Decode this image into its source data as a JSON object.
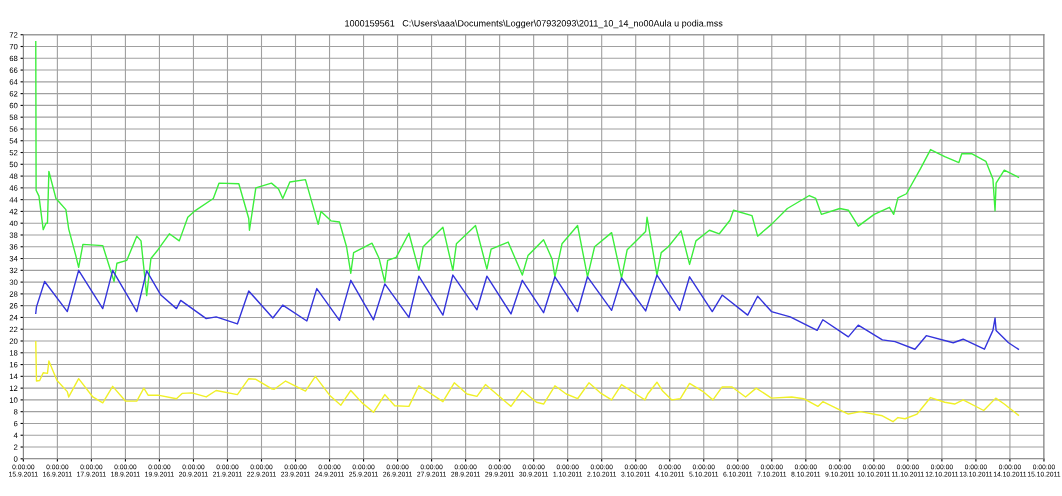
{
  "chart_data": {
    "type": "line",
    "title": "1000159561   C:\\Users\\aaa\\Documents\\Logger\\07932093\\2011_10_14_no00Aula u podia.mss",
    "xlim": [
      "2011-09-15",
      "2011-10-15"
    ],
    "xticks": [
      {
        "value": "2011-09-15",
        "label": "0:00:00\n15.9.2011"
      },
      {
        "value": "2011-09-16",
        "label": "0:00:00\n16.9.2011"
      },
      {
        "value": "2011-09-17",
        "label": "0:00:00\n17.9.2011"
      },
      {
        "value": "2011-09-18",
        "label": "0:00:00\n18.9.2011"
      },
      {
        "value": "2011-09-19",
        "label": "0:00:00\n19.9.2011"
      },
      {
        "value": "2011-09-20",
        "label": "0:00:00\n20.9.2011"
      },
      {
        "value": "2011-09-21",
        "label": "0:00:00\n21.9.2011"
      },
      {
        "value": "2011-09-22",
        "label": "0:00:00\n22.9.2011"
      },
      {
        "value": "2011-09-23",
        "label": "0:00:00\n23.9.2011"
      },
      {
        "value": "2011-09-24",
        "label": "0:00:00\n24.9.2011"
      },
      {
        "value": "2011-09-25",
        "label": "0:00:00\n25.9.2011"
      },
      {
        "value": "2011-09-26",
        "label": "0:00:00\n26.9.2011"
      },
      {
        "value": "2011-09-27",
        "label": "0:00:00\n27.9.2011"
      },
      {
        "value": "2011-09-28",
        "label": "0:00:00\n28.9.2011"
      },
      {
        "value": "2011-09-29",
        "label": "0:00:00\n29.9.2011"
      },
      {
        "value": "2011-09-30",
        "label": "0:00:00\n30.9.2011"
      },
      {
        "value": "2011-10-01",
        "label": "0:00:00\n1.10.2011"
      },
      {
        "value": "2011-10-02",
        "label": "0:00:00\n2.10.2011"
      },
      {
        "value": "2011-10-03",
        "label": "0:00:00\n3.10.2011"
      },
      {
        "value": "2011-10-04",
        "label": "0:00:00\n4.10.2011"
      },
      {
        "value": "2011-10-05",
        "label": "0:00:00\n5.10.2011"
      },
      {
        "value": "2011-10-06",
        "label": "0:00:00\n6.10.2011"
      },
      {
        "value": "2011-10-07",
        "label": "0:00:00\n7.10.2011"
      },
      {
        "value": "2011-10-08",
        "label": "0:00:00\n8.10.2011"
      },
      {
        "value": "2011-10-09",
        "label": "0:00:00\n9.10.2011"
      },
      {
        "value": "2011-10-10",
        "label": "0:00:00\n10.10.2011"
      },
      {
        "value": "2011-10-11",
        "label": "0:00:00\n11.10.2011"
      },
      {
        "value": "2011-10-12",
        "label": "0:00:00\n12.10.2011"
      },
      {
        "value": "2011-10-13",
        "label": "0:00:00\n13.10.2011"
      },
      {
        "value": "2011-10-14",
        "label": "0:00:00\n14.10.2011"
      },
      {
        "value": "2011-10-15",
        "label": "0:00:00\n15.10.2011"
      }
    ],
    "ylim": [
      0,
      72
    ],
    "yticks": [
      0,
      2,
      4,
      6,
      8,
      10,
      12,
      14,
      16,
      18,
      20,
      22,
      24,
      26,
      28,
      30,
      32,
      34,
      36,
      38,
      40,
      42,
      44,
      46,
      48,
      50,
      52,
      54,
      56,
      58,
      60,
      62,
      64,
      66,
      68,
      70,
      72
    ],
    "grid": true,
    "series": [
      {
        "color": "#3cee3c",
        "x": [
          "2011-09-15T08:45",
          "2011-09-15T09:00",
          "2011-09-15T11:00",
          "2011-09-15T14:00",
          "2011-09-15T16:00",
          "2011-09-15T17:00",
          "2011-09-15T18:00",
          "2011-09-15T23:00",
          "2011-09-16T06:00",
          "2011-09-16T08:00",
          "2011-09-16T13:00",
          "2011-09-16T15:00",
          "2011-09-16T18:00",
          "2011-09-17T08:00",
          "2011-09-17T16:00",
          "2011-09-17T18:00",
          "2011-09-18T01:00",
          "2011-09-18T08:00",
          "2011-09-18T11:00",
          "2011-09-18T15:00",
          "2011-09-18T18:00",
          "2011-09-18T23:00",
          "2011-09-19T07:00",
          "2011-09-19T14:00",
          "2011-09-19T20:00",
          "2011-09-20T00:30",
          "2011-09-20T14:00",
          "2011-09-20T18:00",
          "2011-09-21T08:00",
          "2011-09-21T15:00",
          "2011-09-21T15:30",
          "2011-09-21T20:00",
          "2011-09-22T07:00",
          "2011-09-22T12:00",
          "2011-09-22T15:00",
          "2011-09-22T20:00",
          "2011-09-23T07:00",
          "2011-09-23T16:00",
          "2011-09-23T18:00",
          "2011-09-24T01:00",
          "2011-09-24T07:00",
          "2011-09-24T12:00",
          "2011-09-24T15:00",
          "2011-09-24T17:00",
          "2011-09-25T06:00",
          "2011-09-25T11:00",
          "2011-09-25T15:00",
          "2011-09-25T17:00",
          "2011-09-25T23:00",
          "2011-09-26T08:00",
          "2011-09-26T15:00",
          "2011-09-26T18:00",
          "2011-09-27T08:00",
          "2011-09-27T15:00",
          "2011-09-27T17:30",
          "2011-09-28T07:00",
          "2011-09-28T15:00",
          "2011-09-28T18:00",
          "2011-09-29T06:00",
          "2011-09-29T16:00",
          "2011-09-29T20:00",
          "2011-09-30T07:00",
          "2011-09-30T13:00",
          "2011-09-30T15:00",
          "2011-09-30T20:00",
          "2011-10-01T07:00",
          "2011-10-01T14:00",
          "2011-10-01T19:00",
          "2011-10-02T07:00",
          "2011-10-02T14:00",
          "2011-10-02T18:00",
          "2011-10-03T07:00",
          "2011-10-03T08:00",
          "2011-10-03T15:00",
          "2011-10-03T18:00",
          "2011-10-03T23:00",
          "2011-10-04T08:00",
          "2011-10-04T14:00",
          "2011-10-04T18:30",
          "2011-10-05T04:00",
          "2011-10-05T11:00",
          "2011-10-05T18:30",
          "2011-10-05T21:00",
          "2011-10-06T10:00",
          "2011-10-06T14:00",
          "2011-10-06T23:45",
          "2011-10-07T11:00",
          "2011-10-08T02:30",
          "2011-10-08T07:00",
          "2011-10-08T11:00",
          "2011-10-09T00:00",
          "2011-10-09T06:00",
          "2011-10-09T13:00",
          "2011-10-10T00:15",
          "2011-10-10T11:00",
          "2011-10-10T14:00",
          "2011-10-10T17:00",
          "2011-10-10T23:00",
          "2011-10-11T09:00",
          "2011-10-11T16:00",
          "2011-10-12T02:00",
          "2011-10-12T12:00",
          "2011-10-12T14:00",
          "2011-10-12T21:00",
          "2011-10-13T07:00",
          "2011-10-13T12:00",
          "2011-10-13T13:30",
          "2011-10-13T14:15",
          "2011-10-13T20:00",
          "2011-10-14T06:00"
        ],
        "values": [
          70.8,
          45.6,
          44.6,
          38.9,
          40.0,
          40.0,
          48.8,
          44.2,
          42.3,
          39.0,
          34.5,
          32.5,
          36.4,
          36.2,
          30.1,
          33.2,
          33.7,
          37.8,
          37.0,
          27.7,
          34.0,
          35.5,
          38.2,
          37.0,
          41.0,
          42.0,
          44.2,
          46.8,
          46.7,
          40.8,
          38.8,
          46.0,
          46.8,
          45.8,
          44.2,
          47.0,
          47.4,
          39.8,
          42.0,
          40.4,
          40.2,
          36.0,
          31.5,
          35.0,
          36.6,
          34.0,
          30.0,
          33.7,
          34.2,
          38.3,
          32.0,
          36.0,
          39.3,
          32.0,
          36.5,
          39.6,
          32.2,
          35.6,
          36.8,
          31.2,
          34.5,
          37.2,
          33.9,
          30.9,
          36.5,
          39.6,
          30.9,
          36.0,
          38.4,
          30.7,
          35.5,
          38.6,
          41.0,
          31.2,
          35.0,
          36.0,
          38.7,
          33.0,
          37.0,
          38.8,
          38.2,
          40.5,
          42.2,
          41.3,
          37.8,
          39.8,
          42.5,
          44.7,
          44.2,
          41.5,
          42.5,
          42.2,
          39.5,
          41.5,
          42.7,
          41.5,
          44.3,
          45.0,
          49.3,
          52.5,
          51.3,
          50.3,
          51.8,
          51.8,
          50.5,
          47.5,
          42.1,
          46.8,
          49.0,
          47.8
        ]
      },
      {
        "color": "#3434dc",
        "x": [
          "2011-09-15T08:45",
          "2011-09-15T09:15",
          "2011-09-15T15:00",
          "2011-09-16T07:00",
          "2011-09-16T15:00",
          "2011-09-17T08:00",
          "2011-09-17T15:00",
          "2011-09-18T08:00",
          "2011-09-18T15:00",
          "2011-09-19T01:00",
          "2011-09-19T12:00",
          "2011-09-19T15:00",
          "2011-09-20T09:00",
          "2011-09-20T16:00",
          "2011-09-21T07:00",
          "2011-09-21T15:00",
          "2011-09-22T08:00",
          "2011-09-22T15:00",
          "2011-09-23T08:00",
          "2011-09-23T15:00",
          "2011-09-24T07:00",
          "2011-09-24T15:00",
          "2011-09-25T07:00",
          "2011-09-25T15:00",
          "2011-09-26T08:00",
          "2011-09-26T15:00",
          "2011-09-27T08:00",
          "2011-09-27T15:00",
          "2011-09-28T08:00",
          "2011-09-28T15:00",
          "2011-09-29T08:00",
          "2011-09-29T16:00",
          "2011-09-30T07:00",
          "2011-09-30T15:00",
          "2011-10-01T07:00",
          "2011-10-01T14:00",
          "2011-10-02T07:00",
          "2011-10-02T14:00",
          "2011-10-03T07:00",
          "2011-10-03T15:00",
          "2011-10-04T07:00",
          "2011-10-04T14:00",
          "2011-10-05T06:00",
          "2011-10-05T13:00",
          "2011-10-06T07:00",
          "2011-10-06T14:00",
          "2011-10-06T23:45",
          "2011-10-07T13:00",
          "2011-10-08T08:00",
          "2011-10-08T12:00",
          "2011-10-09T06:00",
          "2011-10-09T13:00",
          "2011-10-10T06:00",
          "2011-10-10T15:00",
          "2011-10-11T05:00",
          "2011-10-11T13:00",
          "2011-10-12T08:00",
          "2011-10-12T15:00",
          "2011-10-13T06:00",
          "2011-10-13T12:00",
          "2011-10-13T13:30",
          "2011-10-13T14:15",
          "2011-10-13T23:00",
          "2011-10-14T06:00"
        ],
        "values": [
          24.7,
          25.8,
          30.1,
          25.0,
          32.0,
          25.5,
          32.0,
          25.0,
          31.9,
          27.8,
          25.5,
          26.9,
          23.8,
          24.1,
          22.9,
          28.5,
          23.9,
          26.1,
          23.4,
          28.9,
          23.5,
          30.3,
          23.6,
          29.7,
          24.0,
          31.0,
          24.4,
          31.2,
          25.3,
          31.0,
          24.6,
          30.3,
          24.8,
          30.9,
          25.0,
          30.9,
          25.2,
          30.7,
          25.1,
          31.2,
          25.2,
          30.9,
          25.0,
          27.8,
          24.4,
          27.6,
          25.0,
          24.1,
          21.8,
          23.6,
          20.7,
          22.7,
          20.2,
          19.9,
          18.6,
          20.9,
          19.7,
          20.3,
          18.6,
          21.8,
          23.9,
          21.8,
          19.7,
          18.6
        ]
      },
      {
        "color": "#f0f028",
        "x": [
          "2011-09-15T08:45",
          "2011-09-15T09:15",
          "2011-09-15T11:30",
          "2011-09-15T14:00",
          "2011-09-15T17:00",
          "2011-09-15T18:00",
          "2011-09-15T23:45",
          "2011-09-16T07:00",
          "2011-09-16T08:00",
          "2011-09-16T15:00",
          "2011-09-17T01:00",
          "2011-09-17T08:00",
          "2011-09-17T15:00",
          "2011-09-18T00:00",
          "2011-09-18T08:00",
          "2011-09-18T13:00",
          "2011-09-18T16:00",
          "2011-09-18T23:00",
          "2011-09-19T12:00",
          "2011-09-19T16:00",
          "2011-09-19T23:00",
          "2011-09-20T09:00",
          "2011-09-20T16:00",
          "2011-09-21T07:00",
          "2011-09-21T15:00",
          "2011-09-21T20:00",
          "2011-09-22T07:00",
          "2011-09-22T09:00",
          "2011-09-22T17:00",
          "2011-09-23T07:00",
          "2011-09-23T14:00",
          "2011-09-24T00:00",
          "2011-09-24T08:00",
          "2011-09-24T15:00",
          "2011-09-24T23:00",
          "2011-09-25T07:00",
          "2011-09-25T15:00",
          "2011-09-25T22:00",
          "2011-09-26T08:00",
          "2011-09-26T15:00",
          "2011-09-27T08:00",
          "2011-09-27T16:00",
          "2011-09-28T01:00",
          "2011-09-28T08:00",
          "2011-09-28T14:00",
          "2011-09-29T08:00",
          "2011-09-29T16:00",
          "2011-09-30T02:00",
          "2011-09-30T07:00",
          "2011-09-30T15:00",
          "2011-09-30T23:00",
          "2011-10-01T07:00",
          "2011-10-01T15:00",
          "2011-10-01T23:00",
          "2011-10-02T07:00",
          "2011-10-02T14:00",
          "2011-10-03T00:00",
          "2011-10-03T06:30",
          "2011-10-03T08:30",
          "2011-10-03T15:00",
          "2011-10-03T19:00",
          "2011-10-04T01:30",
          "2011-10-04T07:30",
          "2011-10-04T14:00",
          "2011-10-04T23:00",
          "2011-10-05T06:30",
          "2011-10-05T13:00",
          "2011-10-05T20:00",
          "2011-10-06T05:30",
          "2011-10-06T13:00",
          "2011-10-06T23:45",
          "2011-10-07T14:00",
          "2011-10-07T22:30",
          "2011-10-08T08:30",
          "2011-10-08T12:00",
          "2011-10-09T06:00",
          "2011-10-09T14:30",
          "2011-10-10T06:00",
          "2011-10-10T13:30",
          "2011-10-10T17:00",
          "2011-10-10T22:00",
          "2011-10-11T06:30",
          "2011-10-11T16:00",
          "2011-10-12T02:00",
          "2011-10-12T09:00",
          "2011-10-12T15:00",
          "2011-10-13T05:30",
          "2011-10-13T14:00",
          "2011-10-13T20:00",
          "2011-10-14T06:00"
        ],
        "values": [
          19.9,
          13.2,
          13.3,
          14.6,
          14.5,
          16.6,
          13.3,
          11.4,
          10.5,
          13.6,
          10.5,
          9.5,
          12.3,
          9.8,
          9.8,
          12.0,
          10.8,
          10.8,
          10.2,
          11.1,
          11.2,
          10.5,
          11.6,
          10.9,
          13.6,
          13.5,
          11.9,
          11.8,
          13.2,
          11.5,
          14.0,
          10.8,
          9.1,
          11.6,
          9.5,
          7.9,
          10.9,
          9.0,
          8.9,
          12.4,
          9.7,
          12.9,
          11.0,
          10.6,
          12.6,
          8.9,
          11.6,
          9.6,
          9.3,
          12.4,
          11.0,
          10.2,
          12.9,
          11.2,
          10.0,
          12.6,
          11.0,
          10.0,
          11.0,
          13.0,
          11.5,
          10.0,
          10.2,
          12.8,
          11.5,
          10.0,
          12.2,
          12.2,
          10.5,
          12.0,
          10.3,
          10.5,
          10.2,
          8.9,
          9.7,
          7.6,
          8.0,
          7.3,
          6.3,
          7.0,
          6.8,
          7.6,
          10.4,
          9.6,
          9.3,
          10.0,
          8.2,
          10.3,
          9.3,
          7.4
        ]
      }
    ]
  }
}
